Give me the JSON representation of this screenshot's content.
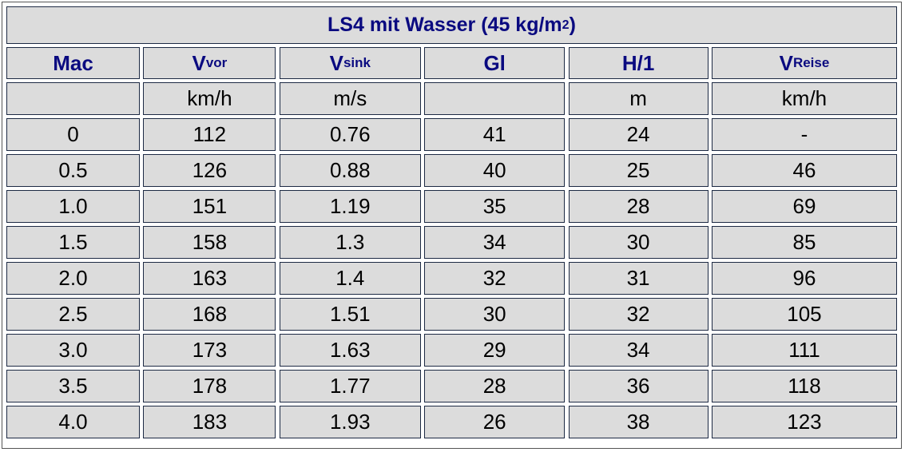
{
  "table": {
    "title": {
      "main": "LS4 mit Wasser (45 kg/m",
      "sup": "2",
      "tail": ")"
    },
    "header": [
      {
        "text": "Mac"
      },
      {
        "text": "V",
        "sub": "vor"
      },
      {
        "text": "V",
        "sub": "sink"
      },
      {
        "text": "Gl"
      },
      {
        "text": "H/1"
      },
      {
        "text": "V",
        "sub": "Reise"
      }
    ],
    "units": [
      null,
      "km/h",
      "m/s",
      null,
      "m",
      "km/h"
    ],
    "rows": [
      [
        "0",
        "112",
        "0.76",
        "41",
        "24",
        "-"
      ],
      [
        "0.5",
        "126",
        "0.88",
        "40",
        "25",
        "46"
      ],
      [
        "1.0",
        "151",
        "1.19",
        "35",
        "28",
        "69"
      ],
      [
        "1.5",
        "158",
        "1.3",
        "34",
        "30",
        "85"
      ],
      [
        "2.0",
        "163",
        "1.4",
        "32",
        "31",
        "96"
      ],
      [
        "2.5",
        "168",
        "1.51",
        "30",
        "32",
        "105"
      ],
      [
        "3.0",
        "173",
        "1.63",
        "29",
        "34",
        "111"
      ],
      [
        "3.5",
        "178",
        "1.77",
        "28",
        "36",
        "118"
      ],
      [
        "4.0",
        "183",
        "1.93",
        "26",
        "38",
        "123"
      ]
    ]
  }
}
